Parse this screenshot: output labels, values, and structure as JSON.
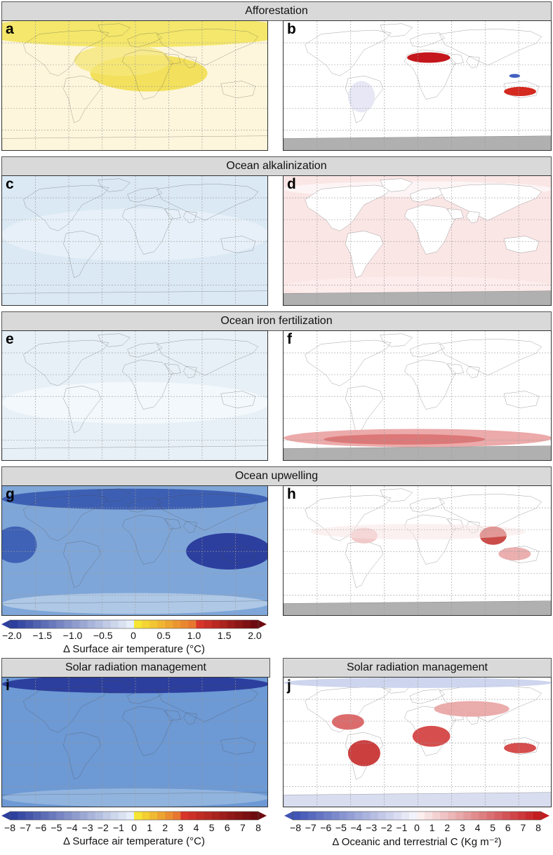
{
  "rows": [
    {
      "title": "Afforestation",
      "left_label": "a",
      "right_label": "b"
    },
    {
      "title": "Ocean alkalinization",
      "left_label": "c",
      "right_label": "d"
    },
    {
      "title": "Ocean iron fertilization",
      "left_label": "e",
      "right_label": "f"
    },
    {
      "title": "Ocean upwelling",
      "left_label": "g",
      "right_label": "h"
    }
  ],
  "srm": {
    "left_title": "Solar radiation management",
    "right_title": "Solar radiation management",
    "left_label": "i",
    "right_label": "j"
  },
  "colorbar_temp_small": {
    "ticks": [
      "−2.0",
      "−1.5",
      "−1.0",
      "−0.5",
      "0",
      "0.5",
      "1.0",
      "1.5",
      "2.0"
    ],
    "title": "Δ Surface air temperature (°C)"
  },
  "colorbar_temp_large": {
    "ticks": [
      "−8",
      "−7",
      "−6",
      "−5",
      "−4",
      "−3",
      "−2",
      "−1",
      "0",
      "1",
      "2",
      "3",
      "4",
      "5",
      "6",
      "7",
      "8"
    ],
    "title": "Δ Surface air temperature (°C)"
  },
  "colorbar_carbon": {
    "ticks": [
      "−8",
      "−7",
      "−6",
      "−5",
      "−4",
      "−3",
      "−2",
      "−1",
      "0",
      "1",
      "2",
      "3",
      "4",
      "5",
      "6",
      "7",
      "8"
    ],
    "title": "Δ Oceanic and terrestrial C (Kg m⁻²)"
  },
  "colors": {
    "banner": "#d9d9d9",
    "cool_dark": "#2c3f9e",
    "cool_light": "#dbe9f4",
    "warm_yellow": "#f4e03a",
    "warm_dark": "#a50f15",
    "land_outline": "#444444",
    "antarctica": "#b0b0b0"
  }
}
